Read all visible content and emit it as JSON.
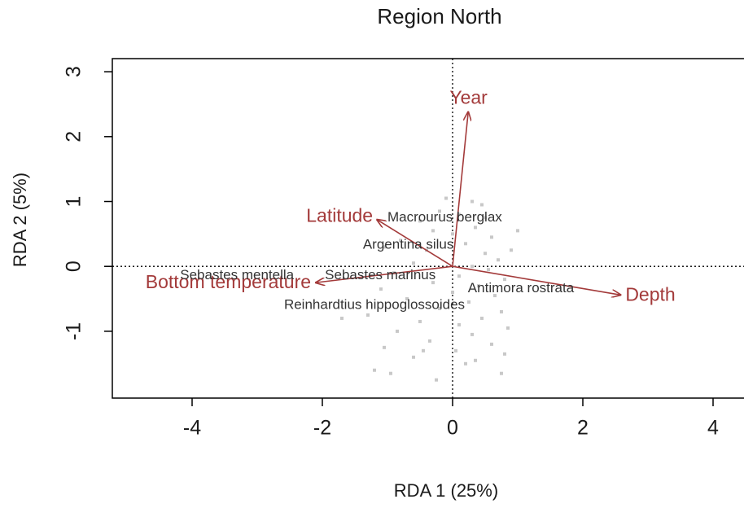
{
  "chart_data": {
    "type": "biplot",
    "title": "Region North",
    "x_label": "RDA 1 (25%)",
    "y_label": "RDA 2 (5%)",
    "xlim": [
      -5.225,
      4.47
    ],
    "ylim": [
      -2.03,
      3.2
    ],
    "xticks": [
      -4,
      -2,
      0,
      2,
      4
    ],
    "yticks": [
      -1,
      0,
      1,
      2,
      3
    ],
    "point_color": "#c8c8c8",
    "arrow_color": "#a33a3a",
    "points": {
      "x": [
        -0.1,
        0.3,
        0.45,
        -0.2,
        0.1,
        0.5,
        -0.5,
        0.35,
        -0.3,
        0.0,
        0.6,
        -0.8,
        0.2,
        -0.4,
        0.5,
        0.7,
        -0.6,
        0.3,
        0.55,
        -0.9,
        0.1,
        0.8,
        -0.3,
        0.4,
        -1.1,
        0.0,
        0.65,
        -0.7,
        0.25,
        -0.2,
        0.75,
        -1.3,
        0.45,
        -0.5,
        0.1,
        0.85,
        -0.85,
        0.3,
        -0.35,
        0.6,
        -1.05,
        0.05,
        0.8,
        -0.6,
        0.35,
        -1.2,
        -0.95,
        0.2,
        0.75,
        -0.25,
        1.0,
        -1.7,
        -1.05,
        0.9,
        -0.45
      ],
      "y": [
        1.05,
        1.0,
        0.95,
        0.85,
        0.8,
        0.75,
        0.7,
        0.6,
        0.55,
        0.5,
        0.45,
        0.4,
        0.35,
        0.25,
        0.2,
        0.1,
        0.05,
        0.0,
        -0.05,
        -0.1,
        -0.15,
        -0.2,
        -0.25,
        -0.3,
        -0.35,
        -0.4,
        -0.45,
        -0.5,
        -0.55,
        -0.65,
        -0.7,
        -0.75,
        -0.8,
        -0.85,
        -0.9,
        -0.95,
        -1.0,
        -1.05,
        -1.15,
        -1.2,
        -1.25,
        -1.3,
        -1.35,
        -1.4,
        -1.45,
        -1.6,
        -1.65,
        -1.5,
        -1.65,
        -1.75,
        0.55,
        -0.8,
        0.3,
        0.25,
        -1.3
      ]
    },
    "species": [
      {
        "name": "Macrourus berglax",
        "x": -0.12,
        "y": 0.75
      },
      {
        "name": "Argentina silus",
        "x": -0.68,
        "y": 0.33
      },
      {
        "name": "Sebastes mentella",
        "x": -3.31,
        "y": -0.14
      },
      {
        "name": "Sebastes marinus",
        "x": -1.11,
        "y": -0.14
      },
      {
        "name": "Antimora rostrata",
        "x": 1.05,
        "y": -0.34
      },
      {
        "name": "Reinhardtius hippoglossoides",
        "x": -1.2,
        "y": -0.6
      }
    ],
    "arrows": [
      {
        "label": "Year",
        "x": 0.24,
        "y": 2.38
      },
      {
        "label": "Latitude",
        "x": -1.16,
        "y": 0.72
      },
      {
        "label": "Bottom temperature",
        "x": -2.1,
        "y": -0.25
      },
      {
        "label": "Depth",
        "x": 2.58,
        "y": -0.44
      }
    ]
  }
}
